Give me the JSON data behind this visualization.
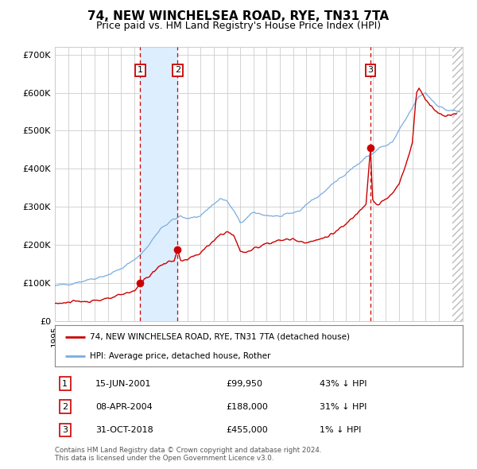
{
  "title": "74, NEW WINCHELSEA ROAD, RYE, TN31 7TA",
  "subtitle": "Price paid vs. HM Land Registry's House Price Index (HPI)",
  "ylim": [
    0,
    720000
  ],
  "xlim_start": 1995.0,
  "xlim_end": 2025.8,
  "yticks": [
    0,
    100000,
    200000,
    300000,
    400000,
    500000,
    600000,
    700000
  ],
  "ytick_labels": [
    "£0",
    "£100K",
    "£200K",
    "£300K",
    "£400K",
    "£500K",
    "£600K",
    "£700K"
  ],
  "sales": [
    {
      "num": 1,
      "date_label": "15-JUN-2001",
      "date_x": 2001.45,
      "price": 99950,
      "pct": "43% ↓ HPI"
    },
    {
      "num": 2,
      "date_label": "08-APR-2004",
      "date_x": 2004.27,
      "price": 188000,
      "pct": "31% ↓ HPI"
    },
    {
      "num": 3,
      "date_label": "31-OCT-2018",
      "date_x": 2018.83,
      "price": 455000,
      "pct": "1% ↓ HPI"
    }
  ],
  "legend_line1": "74, NEW WINCHELSEA ROAD, RYE, TN31 7TA (detached house)",
  "legend_line2": "HPI: Average price, detached house, Rother",
  "footnote": "Contains HM Land Registry data © Crown copyright and database right 2024.\nThis data is licensed under the Open Government Licence v3.0.",
  "line_color_red": "#cc0000",
  "line_color_blue": "#7aade0",
  "dot_color": "#cc0000",
  "dashed_line_color": "#cc0000",
  "shade_color": "#ddeeff",
  "grid_color": "#cccccc",
  "background_color": "#ffffff",
  "hatch_color": "#bbbbbb"
}
